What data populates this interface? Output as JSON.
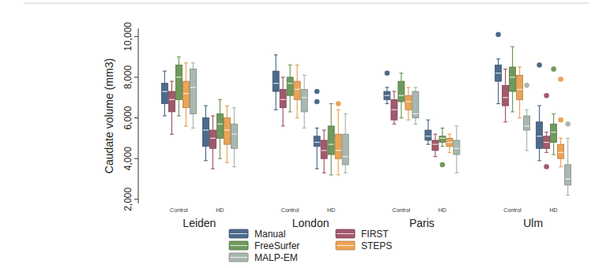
{
  "chart_data": {
    "type": "box",
    "y_label": "Caudate volume (mm3)",
    "sites": [
      "Leiden",
      "London",
      "Paris",
      "Ulm"
    ],
    "categories": [
      "Control",
      "HD",
      "Control",
      "HD",
      "Control",
      "HD",
      "Control",
      "HD"
    ],
    "ylim": [
      1800,
      10400
    ],
    "yticks": [
      {
        "value": 2000,
        "label": "2,000"
      },
      {
        "value": 4000,
        "label": "4,000"
      },
      {
        "value": 6000,
        "label": "6,000"
      },
      {
        "value": 8000,
        "label": "8,000"
      },
      {
        "value": 10000,
        "label": "10,000"
      }
    ],
    "legend": "bottom",
    "series": [
      {
        "name": "Manual",
        "color": "#4d6b8c",
        "whisker_low": [
          6100,
          3900,
          6400,
          3500,
          6700,
          4700,
          6700,
          3900
        ],
        "q1": [
          6700,
          4600,
          7300,
          4600,
          6900,
          4900,
          7800,
          4500
        ],
        "median": [
          7300,
          5400,
          7700,
          4800,
          7100,
          5100,
          8200,
          5100
        ],
        "q3": [
          7700,
          6000,
          8300,
          5100,
          7300,
          5400,
          8600,
          5800
        ],
        "whisker_high": [
          8300,
          6600,
          9100,
          5500,
          7500,
          5900,
          8900,
          6600
        ],
        "outliers": [
          [],
          [],
          [],
          [
            7300,
            6800
          ],
          [
            8200
          ],
          [],
          [
            10100
          ],
          [
            8600
          ]
        ]
      },
      {
        "name": "FIRST",
        "color": "#a3596d",
        "whisker_low": [
          5200,
          3500,
          5600,
          3300,
          5700,
          4100,
          5800,
          4300
        ],
        "q1": [
          6300,
          4500,
          6500,
          4000,
          5900,
          4400,
          6600,
          4500
        ],
        "median": [
          6900,
          5000,
          6900,
          4400,
          6400,
          4700,
          7000,
          4800
        ],
        "q3": [
          7300,
          5400,
          7400,
          4900,
          6900,
          4900,
          7600,
          5100
        ],
        "whisker_high": [
          7800,
          6100,
          8000,
          5400,
          7300,
          5200,
          8400,
          5300
        ],
        "outliers": [
          [],
          [],
          [],
          [],
          [],
          [],
          [],
          [
            7100,
            3600
          ]
        ]
      },
      {
        "name": "FreeSurfer",
        "color": "#6f9a5c",
        "whisker_low": [
          6100,
          4000,
          6300,
          3200,
          6000,
          4600,
          6300,
          4200
        ],
        "q1": [
          6900,
          5000,
          7100,
          4200,
          6800,
          4800,
          7300,
          4800
        ],
        "median": [
          8000,
          5700,
          7700,
          4700,
          7100,
          5000,
          8000,
          5300
        ],
        "q3": [
          8600,
          6200,
          8000,
          5600,
          7800,
          5100,
          8500,
          5700
        ],
        "whisker_high": [
          9000,
          6900,
          8600,
          6700,
          8200,
          5500,
          9500,
          6200
        ],
        "outliers": [
          [],
          [],
          [],
          [],
          [],
          [
            3700
          ],
          [],
          [
            8400
          ]
        ]
      },
      {
        "name": "STEPS",
        "color": "#eba456",
        "whisker_low": [
          5600,
          3800,
          6000,
          3200,
          5900,
          4300,
          6000,
          3600
        ],
        "q1": [
          6500,
          4700,
          6900,
          4000,
          6400,
          4600,
          6900,
          4000
        ],
        "median": [
          7200,
          5400,
          7400,
          4400,
          6800,
          4800,
          7400,
          4300
        ],
        "q3": [
          7800,
          6000,
          7800,
          5200,
          7100,
          5000,
          8100,
          4700
        ],
        "whisker_high": [
          8700,
          6600,
          8600,
          6400,
          7500,
          5200,
          8500,
          5000
        ],
        "outliers": [
          [],
          [],
          [],
          [
            6700
          ],
          [],
          [],
          [],
          [
            7900,
            5900
          ]
        ]
      },
      {
        "name": "MALP-EM",
        "color": "#a9b8af",
        "whisker_low": [
          5500,
          3600,
          5500,
          3300,
          5700,
          3300,
          4400,
          2200
        ],
        "q1": [
          6200,
          4500,
          6300,
          3700,
          6000,
          4200,
          5400,
          2700
        ],
        "median": [
          7500,
          5200,
          7000,
          4100,
          6200,
          4500,
          5600,
          3000
        ],
        "q3": [
          8400,
          5700,
          7400,
          5200,
          7300,
          4900,
          6100,
          3700
        ],
        "whisker_high": [
          8700,
          6500,
          8100,
          6200,
          7500,
          5600,
          6400,
          5000
        ],
        "outliers": [
          [],
          [],
          [],
          [],
          [],
          [],
          [
            7600
          ],
          [
            5700
          ]
        ]
      }
    ]
  }
}
